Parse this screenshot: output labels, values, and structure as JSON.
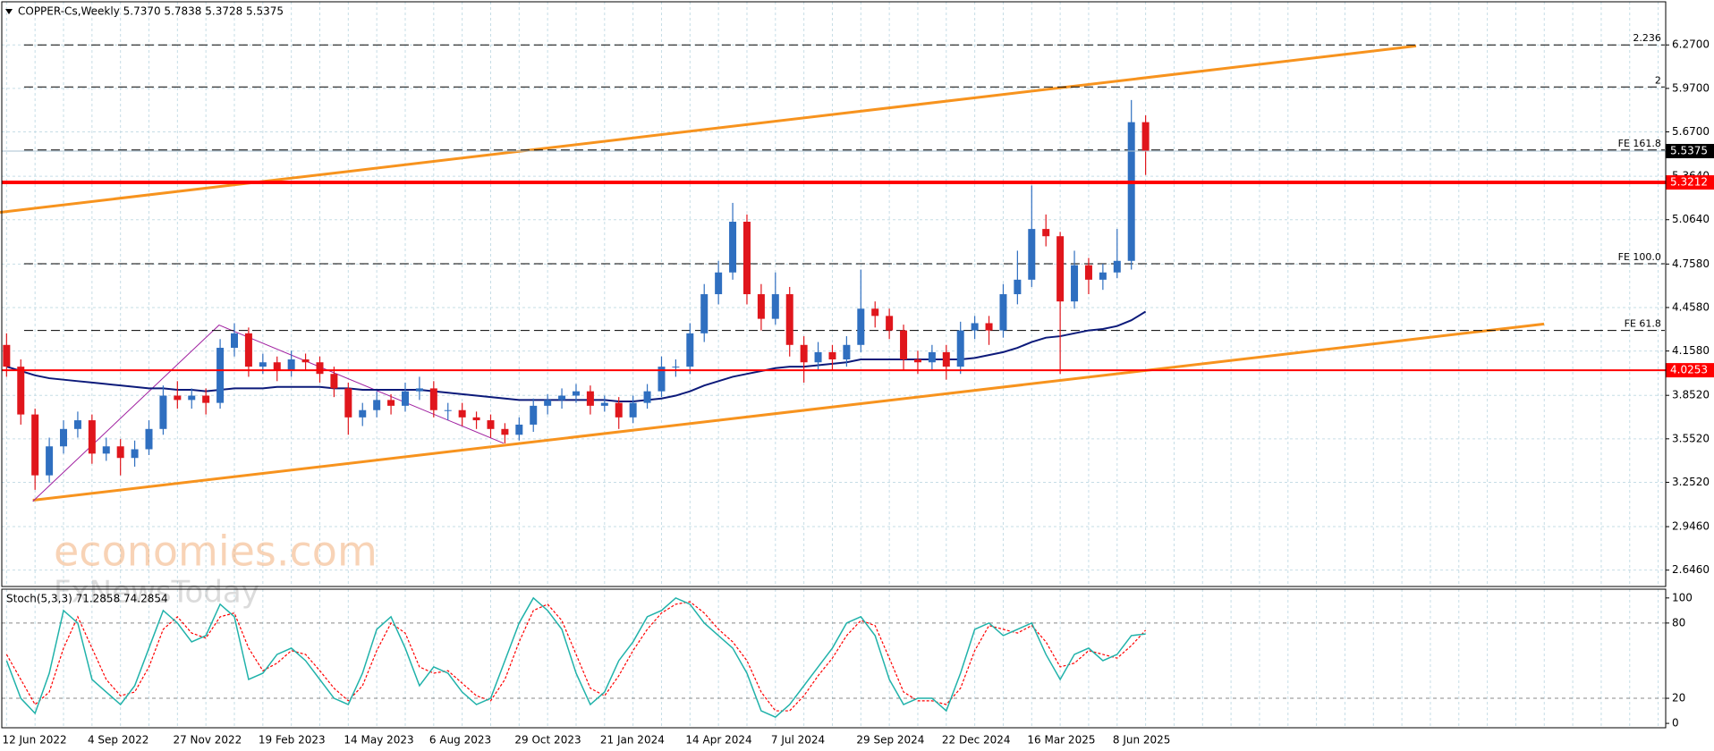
{
  "chart_data": {
    "type": "candlestick",
    "title": "COPPER-Cs,Weekly  5.7370 5.7838 5.3728 5.5375",
    "categories": [
      "12 Jun 2022",
      null,
      null,
      null,
      null,
      null,
      "4 Sep 2022",
      null,
      null,
      null,
      null,
      null,
      "27 Nov 2022",
      null,
      null,
      null,
      null,
      null,
      "19 Feb 2023",
      null,
      null,
      null,
      null,
      null,
      "14 May 2023",
      null,
      null,
      null,
      null,
      null,
      "6 Aug 2023",
      null,
      null,
      null,
      null,
      null,
      "29 Oct 2023",
      null,
      null,
      null,
      null,
      null,
      "21 Jan 2024",
      null,
      null,
      null,
      null,
      null,
      "14 Apr 2024",
      null,
      null,
      null,
      null,
      null,
      "7 Jul 2024",
      null,
      null,
      null,
      null,
      null,
      "29 Sep 2024",
      null,
      null,
      null,
      null,
      null,
      "22 Dec 2024",
      null,
      null,
      null,
      null,
      null,
      "16 Mar 2025",
      null,
      null,
      null,
      null,
      null,
      "8 Jun 2025",
      null,
      null
    ],
    "open": [
      4.2,
      4.05,
      3.72,
      3.3,
      3.5,
      3.62,
      3.68,
      3.45,
      3.5,
      3.42,
      3.48,
      3.62,
      3.85,
      3.82,
      3.85,
      3.8,
      4.18,
      4.28,
      4.05,
      4.08,
      4.02,
      4.1,
      4.08,
      4.0,
      3.9,
      3.7,
      3.75,
      3.82,
      3.78,
      3.88,
      3.9,
      3.75,
      3.75,
      3.7,
      3.68,
      3.62,
      3.58,
      3.65,
      3.78,
      3.82,
      3.85,
      3.88,
      3.78,
      3.8,
      3.7,
      3.8,
      3.88,
      4.05,
      4.05,
      4.28,
      4.55,
      4.7,
      5.05,
      4.55,
      4.38,
      4.55,
      4.2,
      4.08,
      4.15,
      4.1,
      4.2,
      4.45,
      4.4,
      4.3,
      4.1,
      4.08,
      4.15,
      4.05,
      4.3,
      4.35,
      4.3,
      4.55,
      4.65,
      5.0,
      4.95,
      4.5,
      4.75,
      4.65,
      4.7,
      4.78,
      5.737
    ],
    "high": [
      4.28,
      4.1,
      3.76,
      3.56,
      3.68,
      3.74,
      3.72,
      3.56,
      3.55,
      3.54,
      3.68,
      3.92,
      3.95,
      3.9,
      3.9,
      4.24,
      4.35,
      4.32,
      4.14,
      4.12,
      4.16,
      4.14,
      4.12,
      4.05,
      3.94,
      3.8,
      3.88,
      3.86,
      3.94,
      3.98,
      3.95,
      3.8,
      3.8,
      3.74,
      3.72,
      3.66,
      3.7,
      3.83,
      3.86,
      3.9,
      3.93,
      3.92,
      3.85,
      3.84,
      3.85,
      3.93,
      4.12,
      4.1,
      4.35,
      4.62,
      4.78,
      5.18,
      5.1,
      4.62,
      4.7,
      4.6,
      4.26,
      4.22,
      4.2,
      4.26,
      4.72,
      4.5,
      4.45,
      4.34,
      4.16,
      4.2,
      4.2,
      4.36,
      4.4,
      4.4,
      4.62,
      4.85,
      5.3,
      5.1,
      4.98,
      4.85,
      4.8,
      4.76,
      5.0,
      5.89,
      5.7838
    ],
    "low": [
      3.98,
      3.65,
      3.2,
      3.25,
      3.45,
      3.56,
      3.38,
      3.4,
      3.3,
      3.36,
      3.44,
      3.58,
      3.76,
      3.76,
      3.72,
      3.76,
      4.12,
      3.98,
      4.0,
      3.95,
      3.98,
      4.02,
      3.94,
      3.84,
      3.58,
      3.64,
      3.7,
      3.72,
      3.74,
      3.82,
      3.7,
      3.68,
      3.64,
      3.62,
      3.56,
      3.52,
      3.54,
      3.6,
      3.72,
      3.76,
      3.8,
      3.72,
      3.74,
      3.62,
      3.66,
      3.76,
      3.84,
      3.98,
      4.0,
      4.22,
      4.48,
      4.65,
      4.48,
      4.3,
      4.34,
      4.12,
      3.94,
      4.02,
      4.02,
      4.05,
      4.15,
      4.32,
      4.24,
      4.02,
      4.0,
      4.02,
      3.96,
      4.0,
      4.24,
      4.2,
      4.25,
      4.48,
      4.6,
      4.88,
      4.0,
      4.45,
      4.55,
      4.58,
      4.66,
      4.72,
      5.3728
    ],
    "close": [
      4.05,
      3.72,
      3.3,
      3.5,
      3.62,
      3.68,
      3.45,
      3.5,
      3.42,
      3.48,
      3.62,
      3.85,
      3.82,
      3.85,
      3.8,
      4.18,
      4.28,
      4.05,
      4.08,
      4.02,
      4.1,
      4.08,
      4.0,
      3.9,
      3.7,
      3.75,
      3.82,
      3.78,
      3.88,
      3.9,
      3.75,
      3.75,
      3.7,
      3.68,
      3.62,
      3.58,
      3.65,
      3.78,
      3.82,
      3.85,
      3.88,
      3.78,
      3.8,
      3.7,
      3.8,
      3.88,
      4.05,
      4.05,
      4.28,
      4.55,
      4.7,
      5.05,
      4.55,
      4.38,
      4.55,
      4.2,
      4.08,
      4.15,
      4.1,
      4.2,
      4.45,
      4.4,
      4.3,
      4.1,
      4.08,
      4.15,
      4.05,
      4.3,
      4.35,
      4.3,
      4.55,
      4.65,
      5.0,
      4.95,
      4.5,
      4.75,
      4.65,
      4.7,
      4.78,
      5.737,
      5.5375
    ],
    "up_color": "#2f6fc0",
    "down_color": "#e0161c",
    "ylim": [
      2.533,
      6.58
    ],
    "yticks": [
      {
        "value": 6.27,
        "label": "6.2700"
      },
      {
        "value": 5.97,
        "label": "5.9700"
      },
      {
        "value": 5.67,
        "label": "5.6700"
      },
      {
        "value": 5.364,
        "label": "5.3640"
      },
      {
        "value": 5.064,
        "label": "5.0640"
      },
      {
        "value": 4.758,
        "label": "4.7580"
      },
      {
        "value": 4.458,
        "label": "4.4580"
      },
      {
        "value": 4.158,
        "label": "4.1580"
      },
      {
        "value": 3.852,
        "label": "3.8520"
      },
      {
        "value": 3.552,
        "label": "3.5520"
      },
      {
        "value": 3.252,
        "label": "3.2520"
      },
      {
        "value": 2.946,
        "label": "2.9460"
      },
      {
        "value": 2.646,
        "label": "2.6460"
      }
    ],
    "grid": true,
    "ma": {
      "color": "#0c1a7a",
      "values": [
        4.05,
        4.02,
        3.99,
        3.97,
        3.96,
        3.95,
        3.94,
        3.93,
        3.92,
        3.91,
        3.9,
        3.9,
        3.89,
        3.89,
        3.88,
        3.89,
        3.9,
        3.9,
        3.9,
        3.91,
        3.91,
        3.91,
        3.91,
        3.9,
        3.9,
        3.89,
        3.89,
        3.89,
        3.89,
        3.89,
        3.88,
        3.87,
        3.86,
        3.85,
        3.84,
        3.83,
        3.82,
        3.82,
        3.82,
        3.82,
        3.82,
        3.82,
        3.82,
        3.81,
        3.81,
        3.82,
        3.83,
        3.85,
        3.88,
        3.92,
        3.95,
        3.98,
        4.0,
        4.02,
        4.04,
        4.05,
        4.05,
        4.06,
        4.07,
        4.08,
        4.1,
        4.1,
        4.1,
        4.1,
        4.1,
        4.1,
        4.1,
        4.1,
        4.11,
        4.13,
        4.15,
        4.18,
        4.22,
        4.25,
        4.26,
        4.28,
        4.3,
        4.31,
        4.33,
        4.37,
        4.43
      ]
    },
    "levels": [
      {
        "value": 6.27,
        "label": "2.236"
      },
      {
        "value": 5.98,
        "label": "2"
      },
      {
        "value": 5.545,
        "label": "FE 161.8"
      },
      {
        "value": 4.76,
        "label": "FE 100.0"
      },
      {
        "value": 4.3,
        "label": "FE 61.8"
      }
    ],
    "support": [
      {
        "value": 5.3212,
        "label": "5.3212",
        "color": "#ff0000"
      },
      {
        "value": 4.0253,
        "label": "4.0253",
        "color": "#ff0000"
      }
    ],
    "last": {
      "value": 5.5375,
      "label": "5.5375"
    },
    "watermark": [
      "economies.com",
      "FxNewsToday"
    ],
    "stoch": {
      "title": "Stoch(5,3,3) 71.2858 74.2854",
      "ylim": [
        -3.5,
        107
      ],
      "yticks": [
        0,
        20,
        80,
        100
      ],
      "levels": [
        20,
        80
      ],
      "k": {
        "color": "#20b2aa",
        "values": [
          50,
          20,
          8,
          40,
          90,
          80,
          35,
          25,
          15,
          30,
          60,
          90,
          80,
          65,
          70,
          95,
          85,
          35,
          40,
          55,
          60,
          50,
          35,
          20,
          15,
          40,
          75,
          85,
          60,
          30,
          45,
          40,
          25,
          15,
          20,
          50,
          80,
          100,
          90,
          75,
          40,
          15,
          25,
          50,
          65,
          85,
          90,
          100,
          95,
          80,
          70,
          60,
          40,
          10,
          5,
          15,
          30,
          45,
          60,
          80,
          85,
          70,
          35,
          15,
          20,
          20,
          10,
          40,
          75,
          80,
          70,
          75,
          80,
          55,
          35,
          55,
          60,
          50,
          55,
          70,
          71.2858
        ]
      },
      "d": {
        "color": "#ff0000",
        "values": [
          55,
          35,
          15,
          25,
          60,
          85,
          60,
          35,
          22,
          25,
          45,
          75,
          85,
          72,
          68,
          85,
          88,
          60,
          42,
          48,
          58,
          55,
          42,
          28,
          18,
          30,
          58,
          80,
          72,
          45,
          40,
          42,
          32,
          22,
          18,
          35,
          65,
          90,
          95,
          82,
          55,
          28,
          22,
          38,
          58,
          75,
          88,
          95,
          97,
          88,
          75,
          65,
          50,
          25,
          10,
          10,
          22,
          38,
          52,
          70,
          82,
          78,
          52,
          25,
          18,
          18,
          15,
          28,
          58,
          78,
          75,
          72,
          78,
          65,
          45,
          48,
          58,
          55,
          52,
          62,
          74.2854
        ]
      }
    }
  }
}
